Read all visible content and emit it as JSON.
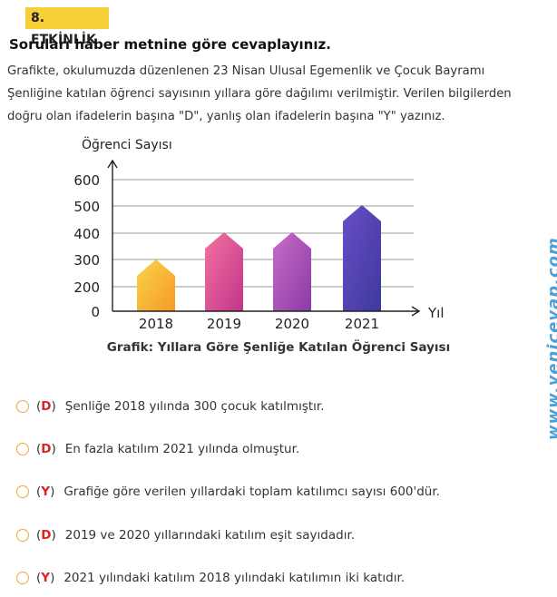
{
  "header": {
    "activity_label": "8. ETKİNLİK",
    "instruction": "Soruları haber metnine göre cevaplayınız."
  },
  "paragraph": [
    "Grafikte, okulumuzda düzenlenen 23 Nisan Ulusal Egemenlik ve Çocuk Bayramı",
    "Şenliğine katılan öğrenci sayısının yıllara göre dağılımı verilmiştir. Verilen bilgilerden",
    "doğru olan ifadelerin başına \"D\",  yanlış olan ifadelerin başına \"Y\" yazınız."
  ],
  "chart_data": {
    "type": "bar",
    "title": "Grafik: Yıllara Göre Şenliğe Katılan Öğrenci Sayısı",
    "ylabel": "Öğrenci Sayısı",
    "xlabel": "Yıl",
    "categories": [
      "2018",
      "2019",
      "2020",
      "2021"
    ],
    "values": [
      300,
      400,
      400,
      500
    ],
    "y_ticks": [
      "0",
      "200",
      "300",
      "400",
      "500",
      "600"
    ],
    "bar_colors": [
      [
        "#fbd34d",
        "#f59a23"
      ],
      [
        "#f472a0",
        "#c0368a"
      ],
      [
        "#c86dc8",
        "#8a3aa6"
      ],
      [
        "#6a4dc8",
        "#3d3a9a"
      ]
    ],
    "grid": true
  },
  "questions": [
    {
      "answer": "D",
      "text": "Şenliğe 2018 yılında 300 çocuk katılmıştır."
    },
    {
      "answer": "D",
      "text": "En fazla katılım 2021 yılında olmuştur."
    },
    {
      "answer": "Y",
      "text": "Grafiğe göre verilen yıllardaki toplam katılımcı sayısı 600'dür."
    },
    {
      "answer": "D",
      "text": "2019 ve 2020 yıllarındaki katılım eşit sayıdadır."
    },
    {
      "answer": "Y",
      "text": "2021 yılındaki katılım 2018 yılındaki katılımın iki katıdır."
    }
  ],
  "watermark": "www.yenicevap.com",
  "colors": {
    "badge": "#f7d038",
    "circle": "#f5a33a",
    "answer": "#d22222",
    "watermark": "#4aa0d8"
  }
}
